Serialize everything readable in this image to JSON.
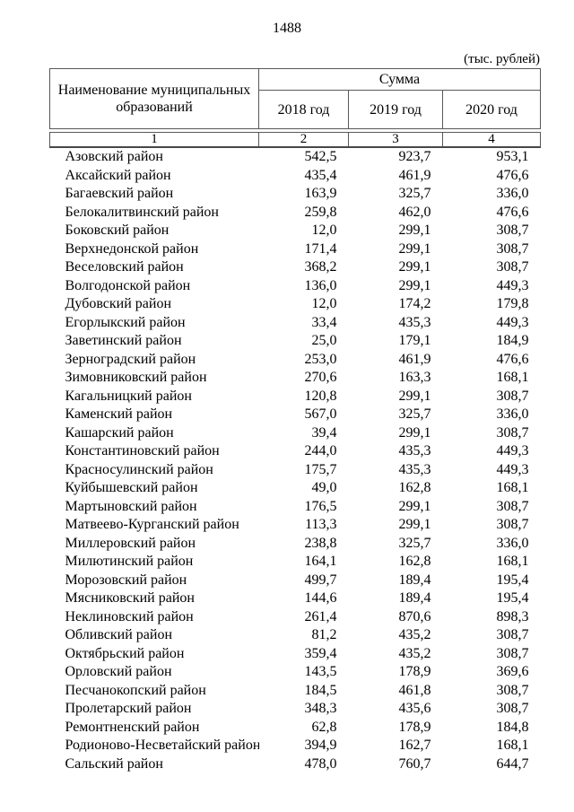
{
  "page": {
    "number": "1488",
    "unit_note": "(тыс. рублей)"
  },
  "table": {
    "header": {
      "name_column": "Наименование муниципальных образований",
      "sum_group": "Сумма",
      "year_columns": [
        "2018 год",
        "2019 год",
        "2020 год"
      ],
      "column_numbers": [
        "1",
        "2",
        "3",
        "4"
      ]
    },
    "rows": [
      {
        "name": "Азовский район",
        "y2018": "542,5",
        "y2019": "923,7",
        "y2020": "953,1"
      },
      {
        "name": "Аксайский район",
        "y2018": "435,4",
        "y2019": "461,9",
        "y2020": "476,6"
      },
      {
        "name": "Багаевский район",
        "y2018": "163,9",
        "y2019": "325,7",
        "y2020": "336,0"
      },
      {
        "name": "Белокалитвинский район",
        "y2018": "259,8",
        "y2019": "462,0",
        "y2020": "476,6"
      },
      {
        "name": "Боковский район",
        "y2018": "12,0",
        "y2019": "299,1",
        "y2020": "308,7"
      },
      {
        "name": "Верхнедонской район",
        "y2018": "171,4",
        "y2019": "299,1",
        "y2020": "308,7"
      },
      {
        "name": "Веселовский район",
        "y2018": "368,2",
        "y2019": "299,1",
        "y2020": "308,7"
      },
      {
        "name": "Волгодонской район",
        "y2018": "136,0",
        "y2019": "299,1",
        "y2020": "449,3"
      },
      {
        "name": "Дубовский район",
        "y2018": "12,0",
        "y2019": "174,2",
        "y2020": "179,8"
      },
      {
        "name": "Егорлыкский район",
        "y2018": "33,4",
        "y2019": "435,3",
        "y2020": "449,3"
      },
      {
        "name": "Заветинский район",
        "y2018": "25,0",
        "y2019": "179,1",
        "y2020": "184,9"
      },
      {
        "name": "Зерноградский район",
        "y2018": "253,0",
        "y2019": "461,9",
        "y2020": "476,6"
      },
      {
        "name": "Зимовниковский район",
        "y2018": "270,6",
        "y2019": "163,3",
        "y2020": "168,1"
      },
      {
        "name": "Кагальницкий район",
        "y2018": "120,8",
        "y2019": "299,1",
        "y2020": "308,7"
      },
      {
        "name": "Каменский район",
        "y2018": "567,0",
        "y2019": "325,7",
        "y2020": "336,0"
      },
      {
        "name": "Кашарский район",
        "y2018": "39,4",
        "y2019": "299,1",
        "y2020": "308,7"
      },
      {
        "name": "Константиновский район",
        "y2018": "244,0",
        "y2019": "435,3",
        "y2020": "449,3"
      },
      {
        "name": "Красносулинский район",
        "y2018": "175,7",
        "y2019": "435,3",
        "y2020": "449,3"
      },
      {
        "name": "Куйбышевский район",
        "y2018": "49,0",
        "y2019": "162,8",
        "y2020": "168,1"
      },
      {
        "name": "Мартыновский район",
        "y2018": "176,5",
        "y2019": "299,1",
        "y2020": "308,7"
      },
      {
        "name": "Матвеево-Курганский район",
        "y2018": "113,3",
        "y2019": "299,1",
        "y2020": "308,7"
      },
      {
        "name": "Миллеровский район",
        "y2018": "238,8",
        "y2019": "325,7",
        "y2020": "336,0"
      },
      {
        "name": "Милютинский район",
        "y2018": "164,1",
        "y2019": "162,8",
        "y2020": "168,1"
      },
      {
        "name": "Морозовский район",
        "y2018": "499,7",
        "y2019": "189,4",
        "y2020": "195,4"
      },
      {
        "name": "Мясниковский район",
        "y2018": "144,6",
        "y2019": "189,4",
        "y2020": "195,4"
      },
      {
        "name": "Неклиновский район",
        "y2018": "261,4",
        "y2019": "870,6",
        "y2020": "898,3"
      },
      {
        "name": "Обливский район",
        "y2018": "81,2",
        "y2019": "435,2",
        "y2020": "308,7"
      },
      {
        "name": "Октябрьский район",
        "y2018": "359,4",
        "y2019": "435,2",
        "y2020": "308,7"
      },
      {
        "name": "Орловский район",
        "y2018": "143,5",
        "y2019": "178,9",
        "y2020": "369,6"
      },
      {
        "name": "Песчанокопский район",
        "y2018": "184,5",
        "y2019": "461,8",
        "y2020": "308,7"
      },
      {
        "name": "Пролетарский район",
        "y2018": "348,3",
        "y2019": "435,6",
        "y2020": "308,7"
      },
      {
        "name": "Ремонтненский район",
        "y2018": "62,8",
        "y2019": "178,9",
        "y2020": "184,8"
      },
      {
        "name": "Родионово-Несветайский район",
        "y2018": "394,9",
        "y2019": "162,7",
        "y2020": "168,1"
      },
      {
        "name": "Сальский район",
        "y2018": "478,0",
        "y2019": "760,7",
        "y2020": "644,7"
      }
    ]
  }
}
